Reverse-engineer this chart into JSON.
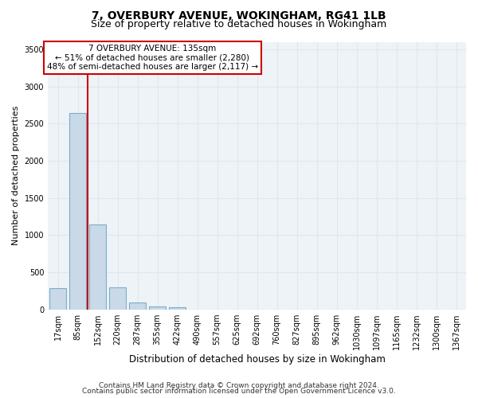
{
  "title": "7, OVERBURY AVENUE, WOKINGHAM, RG41 1LB",
  "subtitle": "Size of property relative to detached houses in Wokingham",
  "xlabel": "Distribution of detached houses by size in Wokingham",
  "ylabel": "Number of detached properties",
  "bar_color": "#c9d9e8",
  "bar_edge_color": "#7aaec8",
  "grid_color": "#dde8f0",
  "background_color": "#eef3f8",
  "annotation_box_color": "#ffffff",
  "annotation_border_color": "#cc0000",
  "vline_color": "#cc0000",
  "categories": [
    "17sqm",
    "85sqm",
    "152sqm",
    "220sqm",
    "287sqm",
    "355sqm",
    "422sqm",
    "490sqm",
    "557sqm",
    "625sqm",
    "692sqm",
    "760sqm",
    "827sqm",
    "895sqm",
    "962sqm",
    "1030sqm",
    "1097sqm",
    "1165sqm",
    "1232sqm",
    "1300sqm",
    "1367sqm"
  ],
  "values": [
    290,
    2640,
    1140,
    295,
    95,
    40,
    25,
    0,
    0,
    0,
    0,
    0,
    0,
    0,
    0,
    0,
    0,
    0,
    0,
    0,
    0
  ],
  "ylim": [
    0,
    3600
  ],
  "yticks": [
    0,
    500,
    1000,
    1500,
    2000,
    2500,
    3000,
    3500
  ],
  "annotation_text": "7 OVERBURY AVENUE: 135sqm\n← 51% of detached houses are smaller (2,280)\n48% of semi-detached houses are larger (2,117) →",
  "footer1": "Contains HM Land Registry data © Crown copyright and database right 2024.",
  "footer2": "Contains public sector information licensed under the Open Government Licence v3.0.",
  "title_fontsize": 10,
  "subtitle_fontsize": 9,
  "xlabel_fontsize": 8.5,
  "ylabel_fontsize": 8,
  "tick_fontsize": 7,
  "annotation_fontsize": 7.5,
  "footer_fontsize": 6.5,
  "vline_x_index": 1.5
}
